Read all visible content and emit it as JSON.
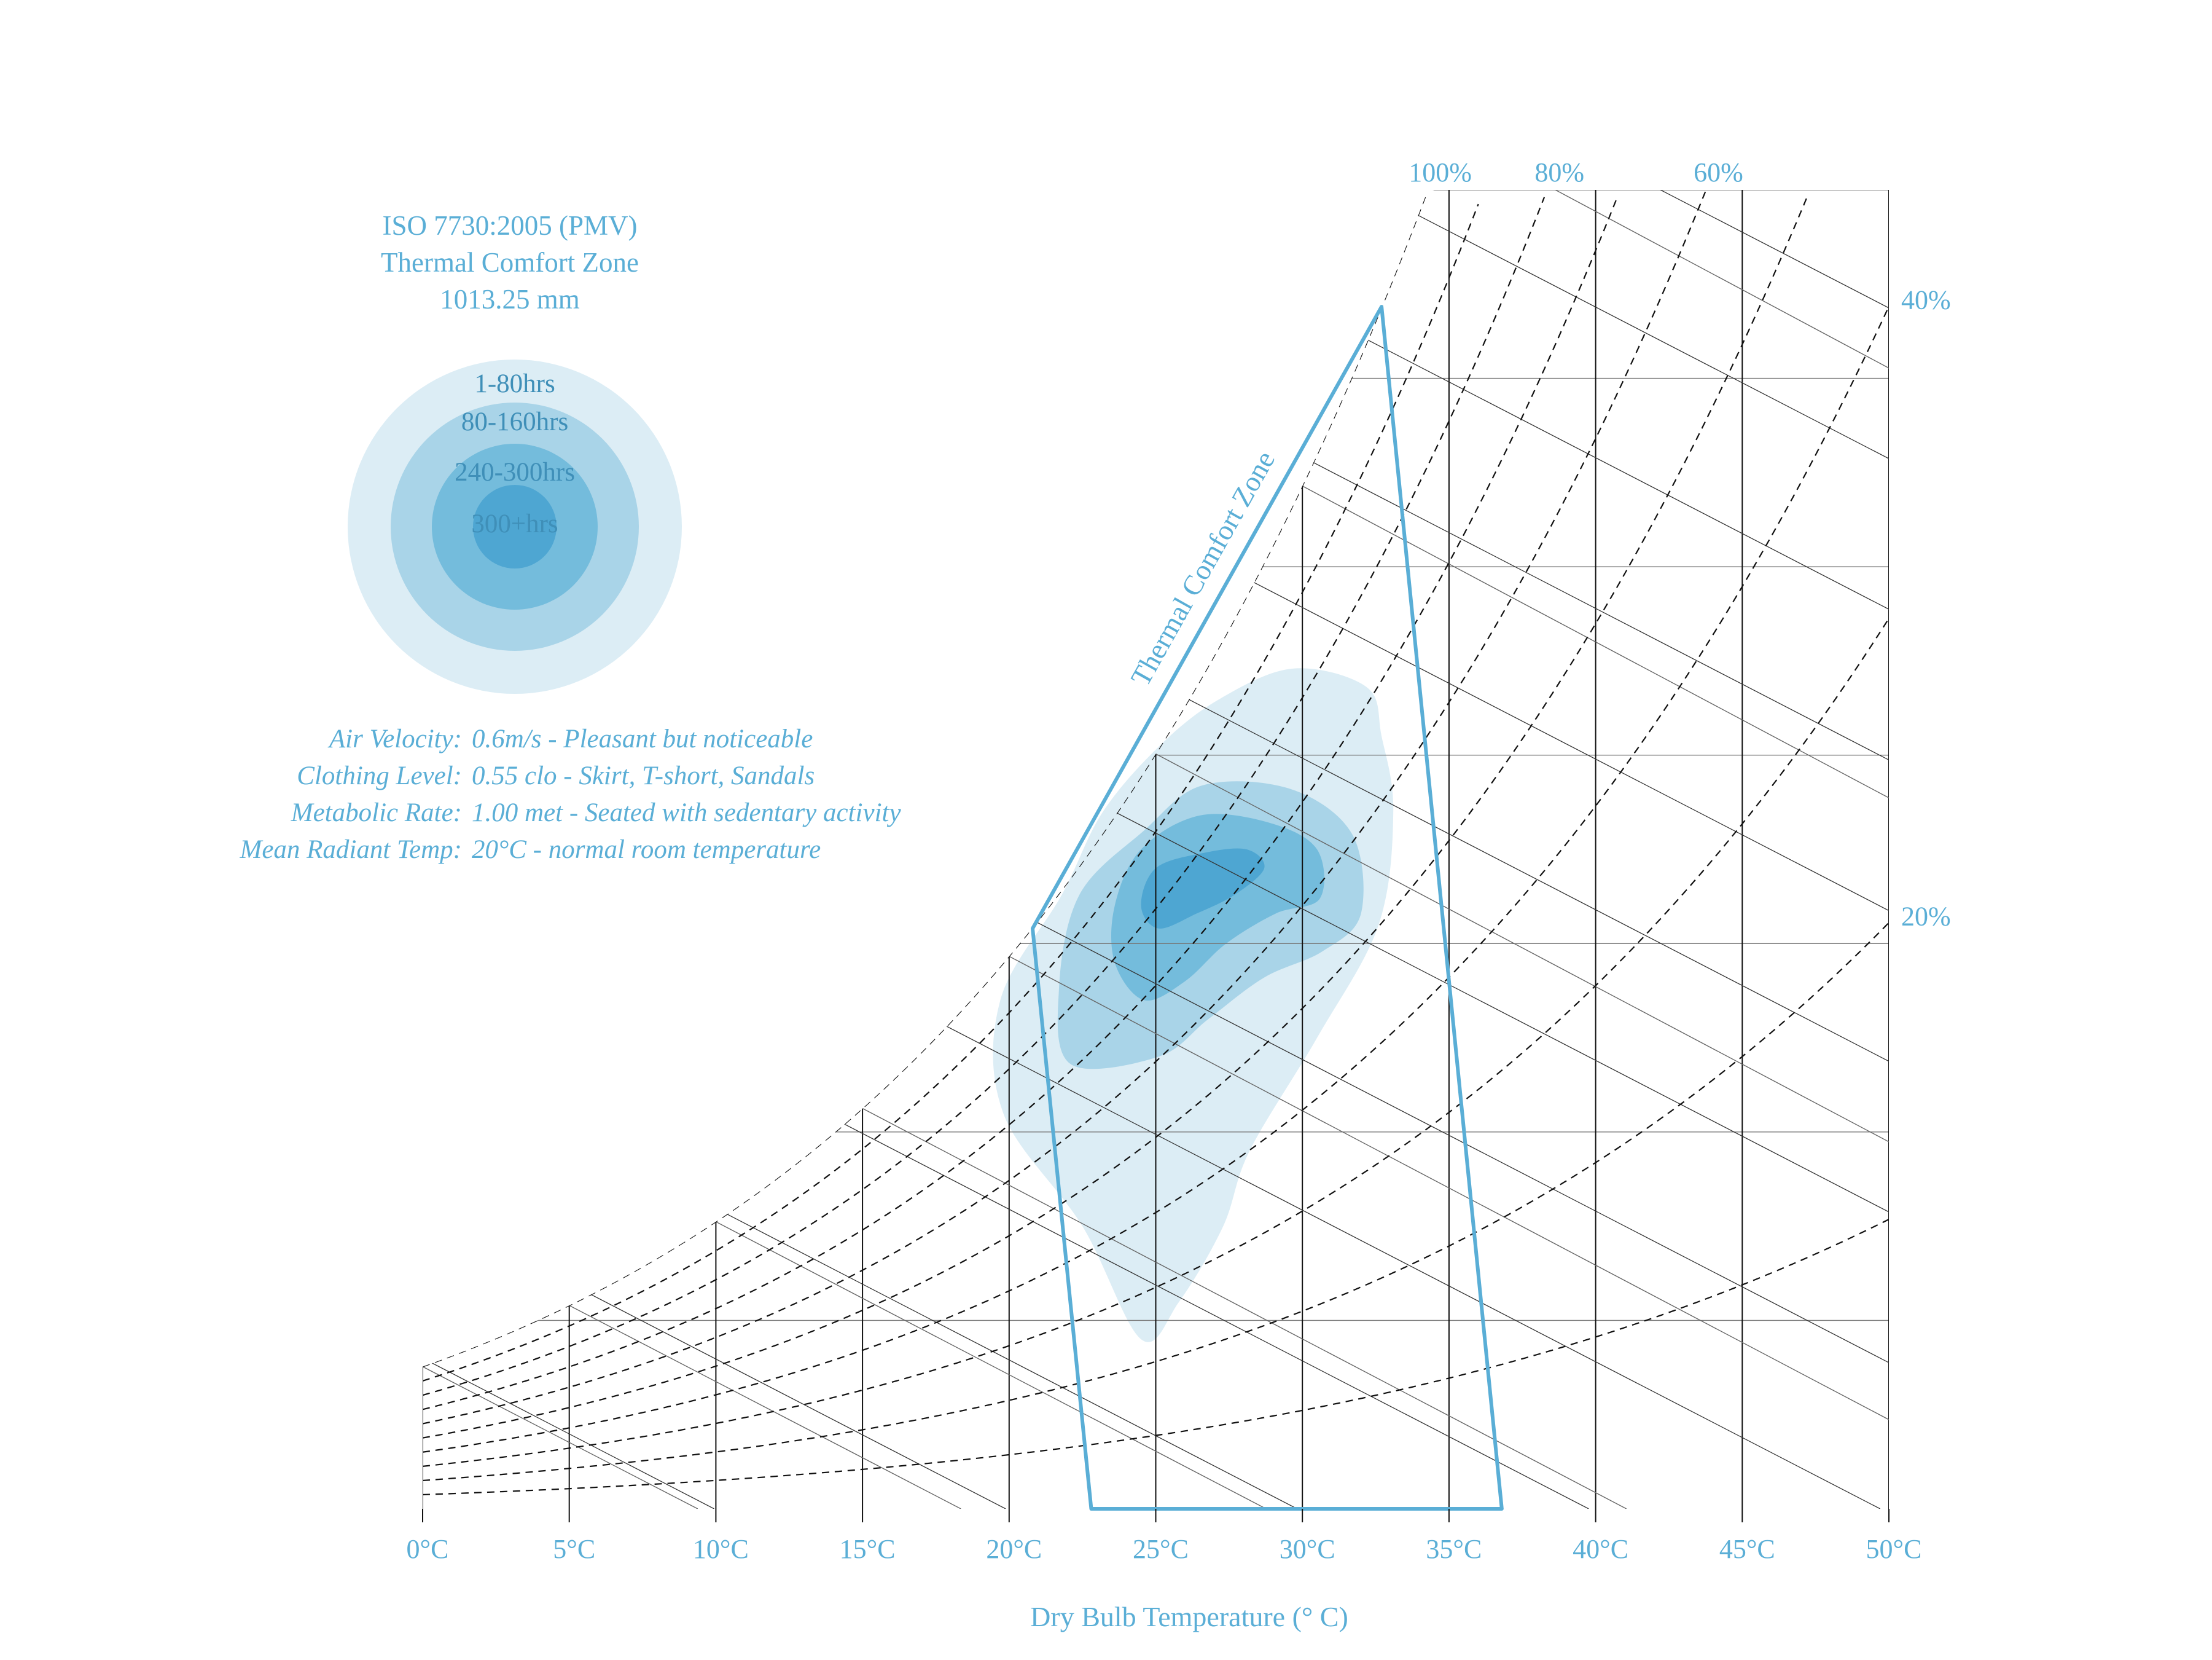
{
  "colors": {
    "accent": "#5aaed6",
    "zone_stroke": "#5aaed6",
    "grid": "#555555",
    "hours_1_80": "#dcedf5",
    "hours_80_160": "#a9d4e8",
    "hours_240_300": "#74bcdc",
    "hours_300_plus": "#4ea6d2"
  },
  "legend": {
    "title_line1": "ISO 7730:2005 (PMV)",
    "title_line2": "Thermal Comfort Zone",
    "title_line3": "1013.25 mm",
    "items": [
      {
        "label": "1-80hrs",
        "color": "#dcedf5"
      },
      {
        "label": "80-160hrs",
        "color": "#a9d4e8"
      },
      {
        "label": "240-300hrs",
        "color": "#74bcdc"
      },
      {
        "label": "300+hrs",
        "color": "#4ea6d2"
      }
    ]
  },
  "parameters": [
    {
      "key": "Air Velocity:",
      "value": "0.6m/s - Pleasant but noticeable"
    },
    {
      "key": "Clothing Level:",
      "value": "0.55 clo - Skirt, T-short, Sandals"
    },
    {
      "key": "Metabolic Rate:",
      "value": "1.00 met - Seated with sedentary activity"
    },
    {
      "key": "Mean Radiant Temp:",
      "value": "20°C - normal room temperature"
    }
  ],
  "chart_data": {
    "type": "psychrometric",
    "xlabel": "Dry Bulb Temperature (° C)",
    "xlim": [
      0,
      50
    ],
    "ylim": [
      0,
      0.035
    ],
    "x_tick_values": [
      0,
      5,
      10,
      15,
      20,
      25,
      30,
      35,
      40,
      45,
      50
    ],
    "x_tick_labels": [
      "0°C",
      "5°C",
      "10°C",
      "15°C",
      "20°C",
      "25°C",
      "30°C",
      "35°C",
      "40°C",
      "45°C",
      "50°C"
    ],
    "humidity_ratio_gridlines": [
      0.005,
      0.01,
      0.015,
      0.02,
      0.025,
      0.03,
      0.035
    ],
    "rh_curves": [
      10,
      20,
      30,
      40,
      50,
      60,
      70,
      80,
      90,
      100
    ],
    "rh_labels": [
      {
        "text": "100%",
        "rh": 100
      },
      {
        "text": "80%",
        "rh": 80
      },
      {
        "text": "60%",
        "rh": 60
      },
      {
        "text": "40%",
        "rh": 40
      },
      {
        "text": "20%",
        "rh": 20
      }
    ],
    "wet_bulb_lines": [
      0,
      5,
      10,
      15,
      20,
      25,
      30,
      35,
      40,
      45
    ],
    "enthalpy_lines": [
      10,
      20,
      30,
      40,
      50,
      60,
      70,
      80,
      90,
      100,
      110,
      120,
      130
    ],
    "comfort_zone": {
      "label": "Thermal Comfort Zone",
      "polygon": [
        [
          22.8,
          0.0
        ],
        [
          20.8,
          0.0154
        ],
        [
          32.7,
          0.0319
        ],
        [
          36.8,
          0.0
        ]
      ]
    },
    "hours_density": [
      {
        "band": "1-80hrs",
        "polygon": [
          [
            24.5,
            0.0045
          ],
          [
            22.5,
            0.0075
          ],
          [
            19.8,
            0.0105
          ],
          [
            19.7,
            0.0135
          ],
          [
            21.8,
            0.0163
          ],
          [
            23.2,
            0.0185
          ],
          [
            25.2,
            0.0203
          ],
          [
            27.2,
            0.0215
          ],
          [
            29.7,
            0.0223
          ],
          [
            32.2,
            0.0218
          ],
          [
            32.7,
            0.0205
          ],
          [
            33.1,
            0.0185
          ],
          [
            32.6,
            0.0155
          ],
          [
            30.5,
            0.0125
          ],
          [
            28.2,
            0.0095
          ],
          [
            27.3,
            0.0075
          ],
          [
            25.8,
            0.0055
          ]
        ]
      },
      {
        "band": "80-160hrs",
        "polygon": [
          [
            22.1,
            0.0118
          ],
          [
            21.7,
            0.0138
          ],
          [
            22.4,
            0.0163
          ],
          [
            24.6,
            0.018
          ],
          [
            26.6,
            0.0192
          ],
          [
            29.6,
            0.0191
          ],
          [
            31.7,
            0.0179
          ],
          [
            32.0,
            0.0158
          ],
          [
            30.7,
            0.0148
          ],
          [
            28.7,
            0.0141
          ],
          [
            26.8,
            0.013
          ],
          [
            25.1,
            0.012
          ]
        ]
      },
      {
        "band": "240-300hrs",
        "polygon": [
          [
            24.6,
            0.0135
          ],
          [
            23.6,
            0.0145
          ],
          [
            23.6,
            0.016
          ],
          [
            24.5,
            0.0175
          ],
          [
            26.5,
            0.0184
          ],
          [
            28.9,
            0.0182
          ],
          [
            30.5,
            0.0175
          ],
          [
            30.6,
            0.0162
          ],
          [
            29.1,
            0.0158
          ],
          [
            27.4,
            0.015
          ],
          [
            26.0,
            0.014
          ]
        ]
      },
      {
        "band": "300+hrs",
        "polygon": [
          [
            25.1,
            0.0154
          ],
          [
            24.5,
            0.016
          ],
          [
            25.0,
            0.017
          ],
          [
            26.6,
            0.0174
          ],
          [
            28.1,
            0.0175
          ],
          [
            28.7,
            0.017
          ],
          [
            27.7,
            0.0163
          ],
          [
            26.4,
            0.0158
          ]
        ]
      }
    ]
  }
}
